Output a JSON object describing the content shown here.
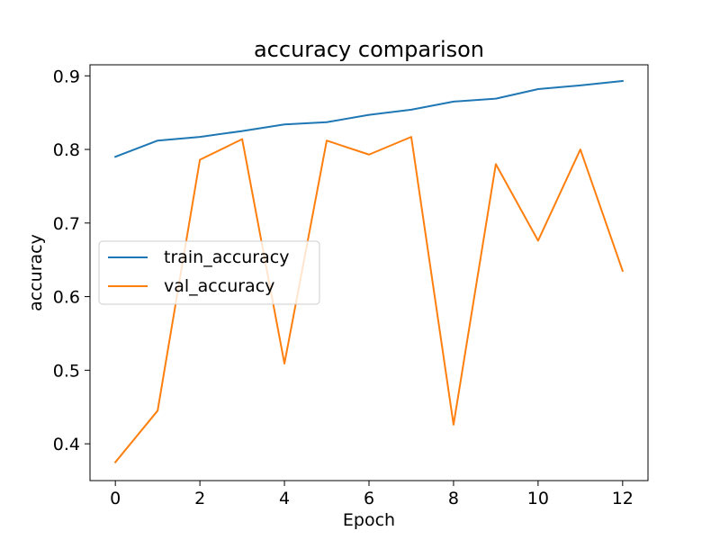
{
  "chart_data": {
    "type": "line",
    "title": "accuracy comparison",
    "xlabel": "Epoch",
    "ylabel": "accuracy",
    "xlim": [
      -0.6,
      12.6
    ],
    "ylim": [
      0.35,
      0.915
    ],
    "x_ticks": [
      0,
      2,
      4,
      6,
      8,
      10,
      12
    ],
    "y_ticks": [
      0.4,
      0.5,
      0.6,
      0.7,
      0.8,
      0.9
    ],
    "x_tick_labels": [
      "0",
      "2",
      "4",
      "6",
      "8",
      "10",
      "12"
    ],
    "y_tick_labels": [
      "0.4",
      "0.5",
      "0.6",
      "0.7",
      "0.8",
      "0.9"
    ],
    "grid": false,
    "legend_position": "center-left",
    "x": [
      0,
      1,
      2,
      3,
      4,
      5,
      6,
      7,
      8,
      9,
      10,
      11,
      12
    ],
    "series": [
      {
        "name": "train_accuracy",
        "color": "#1f77b4",
        "values": [
          0.79,
          0.812,
          0.817,
          0.825,
          0.834,
          0.837,
          0.847,
          0.854,
          0.865,
          0.869,
          0.882,
          0.887,
          0.893
        ]
      },
      {
        "name": "val_accuracy",
        "color": "#ff7f0e",
        "values": [
          0.375,
          0.445,
          0.786,
          0.814,
          0.509,
          0.812,
          0.793,
          0.817,
          0.426,
          0.78,
          0.676,
          0.8,
          0.635
        ]
      }
    ]
  }
}
